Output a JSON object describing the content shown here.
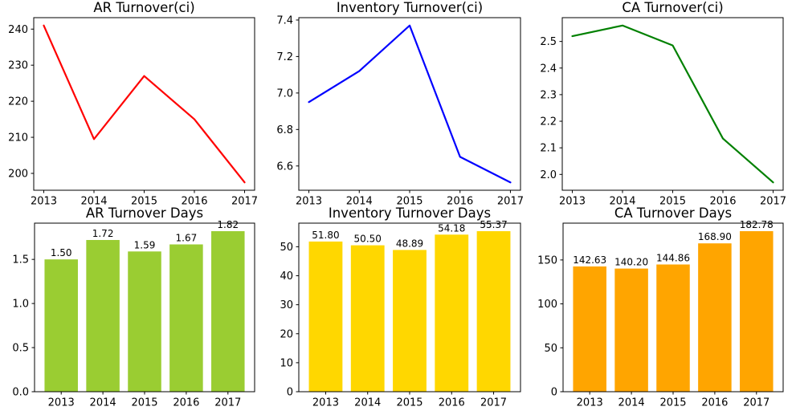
{
  "figure": {
    "background": "#ffffff",
    "text_color": "#000000"
  },
  "chart_data": [
    {
      "id": "ar-turnover-ci",
      "type": "line",
      "title": "AR Turnover(ci)",
      "color": "#ff0000",
      "categories": [
        "2013",
        "2014",
        "2015",
        "2016",
        "2017"
      ],
      "values": [
        241.0,
        209.5,
        227.0,
        215.0,
        197.5
      ],
      "ylim": [
        195.325,
        243.175
      ],
      "yticks": [
        200,
        210,
        220,
        230,
        240
      ],
      "ytick_labels": [
        "200",
        "210",
        "220",
        "230",
        "240"
      ],
      "grid": false,
      "legend": "none"
    },
    {
      "id": "inventory-turnover-ci",
      "type": "line",
      "title": "Inventory Turnover(ci)",
      "color": "#0000ff",
      "categories": [
        "2013",
        "2014",
        "2015",
        "2016",
        "2017"
      ],
      "values": [
        6.95,
        7.12,
        7.37,
        6.65,
        6.51
      ],
      "ylim": [
        6.467,
        7.413
      ],
      "yticks": [
        6.6,
        6.8,
        7.0,
        7.2,
        7.4
      ],
      "ytick_labels": [
        "6.6",
        "6.8",
        "7.0",
        "7.2",
        "7.4"
      ],
      "grid": false,
      "legend": "none"
    },
    {
      "id": "ca-turnover-ci",
      "type": "line",
      "title": "CA Turnover(ci)",
      "color": "#008000",
      "categories": [
        "2013",
        "2014",
        "2015",
        "2016",
        "2017"
      ],
      "values": [
        2.52,
        2.56,
        2.485,
        2.135,
        1.97
      ],
      "ylim": [
        1.9405,
        2.5895
      ],
      "yticks": [
        2.0,
        2.1,
        2.2,
        2.3,
        2.4,
        2.5
      ],
      "ytick_labels": [
        "2.0",
        "2.1",
        "2.2",
        "2.3",
        "2.4",
        "2.5"
      ],
      "grid": false,
      "legend": "none"
    },
    {
      "id": "ar-turnover-days",
      "type": "bar",
      "title": "AR Turnover Days",
      "color": "#9acd32",
      "categories": [
        "2013",
        "2014",
        "2015",
        "2016",
        "2017"
      ],
      "values": [
        1.5,
        1.72,
        1.59,
        1.67,
        1.82
      ],
      "bar_labels": [
        "1.50",
        "1.72",
        "1.59",
        "1.67",
        "1.82"
      ],
      "ylim": [
        0,
        1.911
      ],
      "yticks": [
        0.0,
        0.5,
        1.0,
        1.5
      ],
      "ytick_labels": [
        "0.0",
        "0.5",
        "1.0",
        "1.5"
      ],
      "grid": false,
      "legend": "none"
    },
    {
      "id": "inventory-turnover-days",
      "type": "bar",
      "title": "Inventory Turnover Days",
      "color": "#ffd700",
      "categories": [
        "2013",
        "2014",
        "2015",
        "2016",
        "2017"
      ],
      "values": [
        51.8,
        50.5,
        48.89,
        54.18,
        55.37
      ],
      "bar_labels": [
        "51.80",
        "50.50",
        "48.89",
        "54.18",
        "55.37"
      ],
      "ylim": [
        0,
        58.14
      ],
      "yticks": [
        0,
        10,
        20,
        30,
        40,
        50
      ],
      "ytick_labels": [
        "0",
        "10",
        "20",
        "30",
        "40",
        "50"
      ],
      "grid": false,
      "legend": "none"
    },
    {
      "id": "ca-turnover-days",
      "type": "bar",
      "title": "CA Turnover Days",
      "color": "#ffa500",
      "categories": [
        "2013",
        "2014",
        "2015",
        "2016",
        "2017"
      ],
      "values": [
        142.63,
        140.2,
        144.86,
        168.9,
        182.78
      ],
      "bar_labels": [
        "142.63",
        "140.20",
        "144.86",
        "168.90",
        "182.78"
      ],
      "ylim": [
        0,
        191.92
      ],
      "yticks": [
        0,
        50,
        100,
        150
      ],
      "ytick_labels": [
        "0",
        "50",
        "100",
        "150"
      ],
      "grid": false,
      "legend": "none"
    }
  ]
}
